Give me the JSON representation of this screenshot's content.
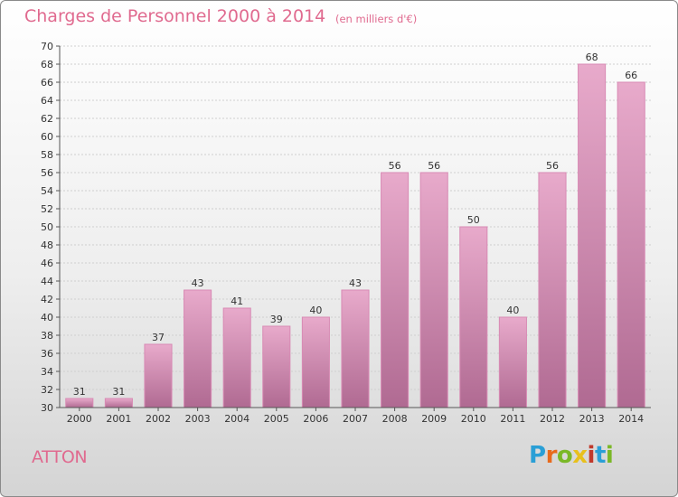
{
  "header": {
    "title": "Charges de Personnel 2000 à 2014",
    "subtitle": "(en milliers d'€)"
  },
  "footer": {
    "town": "ATTON",
    "logo_text": "Proxiti",
    "logo_colors": [
      "#2a9fd6",
      "#e86a1c",
      "#7ab827",
      "#e8c01c",
      "#c0392b",
      "#2a9fd6",
      "#7ab827"
    ]
  },
  "colors": {
    "bar_top": "#e8aacb",
    "bar_bottom": "#b06a92",
    "title": "#e06a8f"
  },
  "chart_data": {
    "type": "bar",
    "title": "Charges de Personnel 2000 à 2014",
    "subtitle": "(en milliers d'€)",
    "xlabel": "",
    "ylabel": "",
    "categories": [
      "2000",
      "2001",
      "2002",
      "2003",
      "2004",
      "2005",
      "2006",
      "2007",
      "2008",
      "2009",
      "2010",
      "2011",
      "2012",
      "2013",
      "2014"
    ],
    "values": [
      31,
      31,
      37,
      43,
      41,
      39,
      40,
      43,
      56,
      56,
      50,
      40,
      56,
      68,
      66
    ],
    "ylim": [
      30,
      70
    ],
    "ytick_step": 2,
    "grid": true,
    "legend": "none"
  }
}
